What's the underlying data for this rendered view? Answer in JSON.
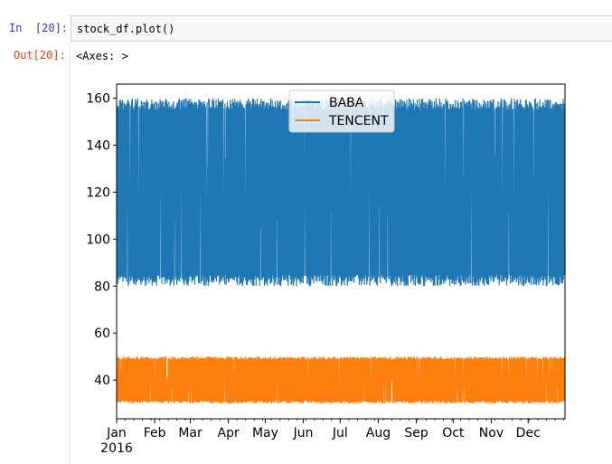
{
  "cell": {
    "in_prompt": "In  [20]:",
    "code": "stock_df.plot()",
    "out_prompt": "Out[20]:",
    "output_repr": "<Axes: >"
  },
  "colors": {
    "baba": "#1f77b4",
    "tencent": "#ff7f0e",
    "in_prompt": "#303f9f",
    "out_prompt": "#d84315"
  },
  "chart_data": {
    "type": "line",
    "title": "",
    "xlabel": "",
    "ylabel": "",
    "x_range": [
      "2016-01-01",
      "2016-12-31"
    ],
    "x_ticks": [
      "Jan",
      "Feb",
      "Mar",
      "Apr",
      "May",
      "Jun",
      "Jul",
      "Aug",
      "Sep",
      "Oct",
      "Nov",
      "Dec"
    ],
    "x_year_label": "2016",
    "ylim": [
      23.5,
      166
    ],
    "y_ticks": [
      40,
      60,
      80,
      100,
      120,
      140,
      160
    ],
    "legend_position": "top-center",
    "series": [
      {
        "name": "BABA",
        "color": "#1f77b4",
        "low": 80,
        "high": 160,
        "pattern": "dense random fluctuation between about 80 and 160"
      },
      {
        "name": "TENCENT",
        "color": "#ff7f0e",
        "low": 30,
        "high": 50,
        "pattern": "dense random fluctuation between about 30 and 50"
      }
    ]
  }
}
